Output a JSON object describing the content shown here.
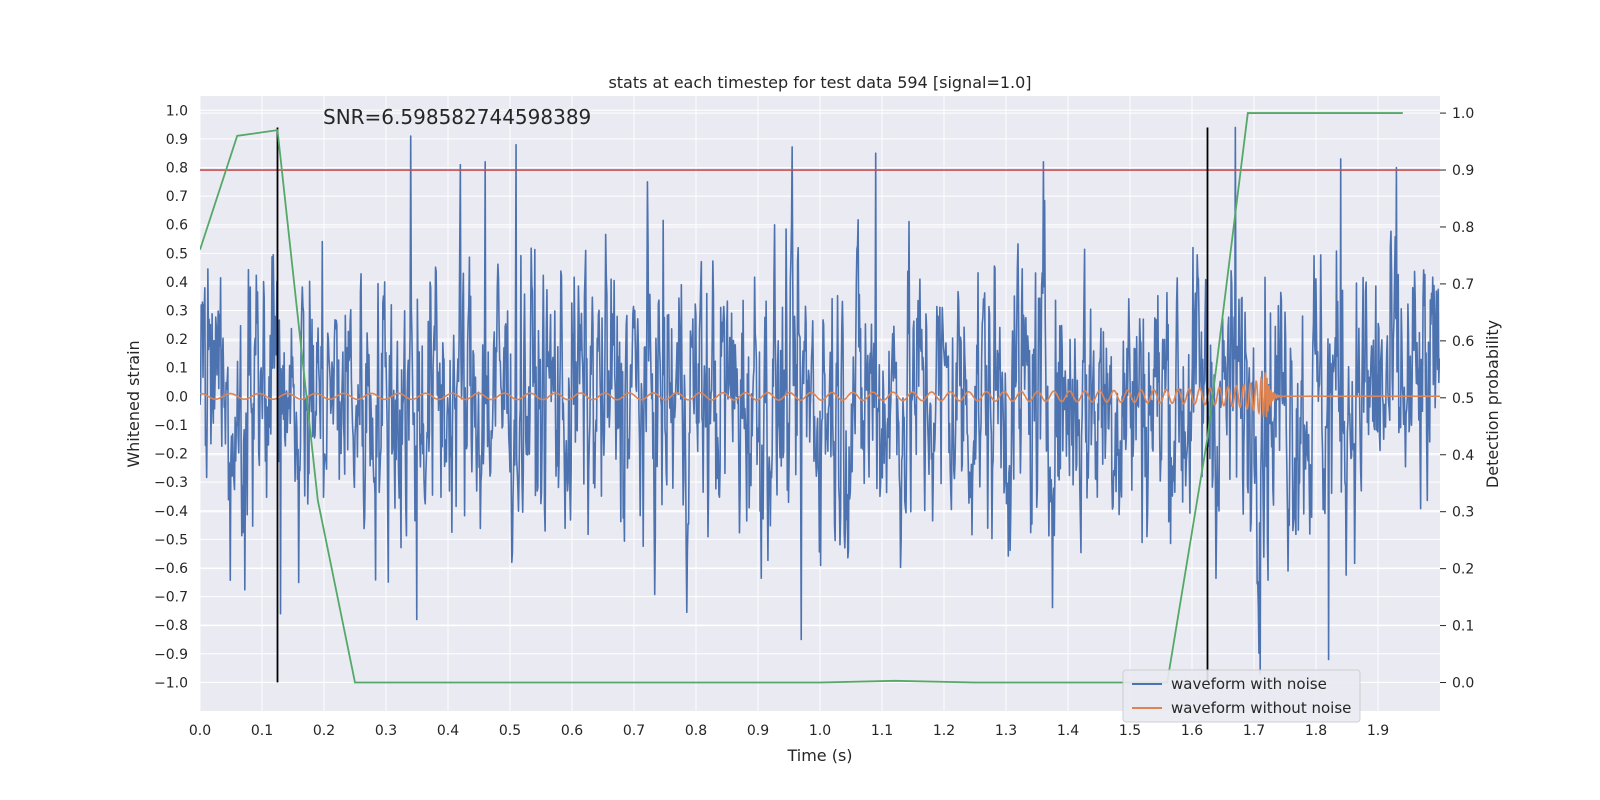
{
  "chart_data": {
    "type": "line",
    "title": "stats at each timestep for test data 594 [signal=1.0]",
    "annotation": "SNR=6.598582744598389",
    "xlabel": "Time (s)",
    "ylabel_left": "Whitened strain",
    "ylabel_right": "Detection probability",
    "xlim": [
      0.0,
      2.0
    ],
    "ylim_left": [
      -1.1,
      1.05
    ],
    "ylim_right": [
      -0.05,
      1.03
    ],
    "x_ticks": [
      "0.0",
      "0.1",
      "0.2",
      "0.3",
      "0.4",
      "0.5",
      "0.6",
      "0.7",
      "0.8",
      "0.9",
      "1.0",
      "1.1",
      "1.2",
      "1.3",
      "1.4",
      "1.5",
      "1.6",
      "1.7",
      "1.8",
      "1.9"
    ],
    "y_ticks_left": [
      "1.0",
      "0.9",
      "0.8",
      "0.7",
      "0.6",
      "0.5",
      "0.4",
      "0.3",
      "0.2",
      "0.1",
      "0.0",
      "−0.1",
      "−0.2",
      "−0.3",
      "−0.4",
      "−0.5",
      "−0.6",
      "−0.7",
      "−0.8",
      "−0.9",
      "−1.0"
    ],
    "y_ticks_right": [
      "1.0",
      "0.9",
      "0.8",
      "0.7",
      "0.6",
      "0.5",
      "0.4",
      "0.3",
      "0.2",
      "0.1",
      "0.0"
    ],
    "grid": true,
    "legend_position": "lower right",
    "threshold": {
      "axis": "right",
      "value": 0.9,
      "color": "#c44e52"
    },
    "vertical_markers": [
      {
        "x": 0.125,
        "y_range": [
          -1.0,
          0.94
        ],
        "color": "#000000"
      },
      {
        "x": 1.625,
        "y_range": [
          -1.0,
          0.94
        ],
        "color": "#000000"
      }
    ],
    "series": [
      {
        "name": "waveform with noise",
        "axis": "left",
        "color": "#4c72b0",
        "kind": "noise",
        "approx_amplitude": 0.3,
        "notable_peaks": [
          {
            "x": 0.34,
            "y": 0.91
          },
          {
            "x": 0.42,
            "y": 0.81
          },
          {
            "x": 0.46,
            "y": 0.82
          },
          {
            "x": 0.51,
            "y": 0.88
          },
          {
            "x": 1.09,
            "y": 0.85
          },
          {
            "x": 1.36,
            "y": 0.82
          },
          {
            "x": 1.67,
            "y": 0.94
          },
          {
            "x": 1.84,
            "y": 0.83
          },
          {
            "x": 1.93,
            "y": 0.8
          },
          {
            "x": 0.97,
            "y": -0.85
          },
          {
            "x": 1.71,
            "y": -0.97
          },
          {
            "x": 1.82,
            "y": -0.92
          },
          {
            "x": 0.13,
            "y": -0.76
          },
          {
            "x": 0.35,
            "y": -0.78
          }
        ]
      },
      {
        "name": "waveform without noise",
        "axis": "left",
        "color": "#dd8452",
        "kind": "chirp",
        "merger_time": 1.72,
        "ringdown_level": 0.0
      },
      {
        "name": "Detection probability",
        "axis": "right",
        "color": "#55a868",
        "x": [
          0.0,
          0.06,
          0.125,
          0.19,
          0.25,
          0.31,
          0.5,
          0.75,
          1.0,
          1.12,
          1.25,
          1.5,
          1.56,
          1.625,
          1.69,
          1.75,
          1.94
        ],
        "y": [
          0.76,
          0.96,
          0.97,
          0.32,
          0.0,
          0.0,
          0.0,
          0.0,
          0.0,
          0.003,
          0.0,
          0.0,
          0.0,
          0.43,
          1.0,
          1.0,
          1.0
        ]
      }
    ],
    "legend": [
      "waveform with noise",
      "waveform without noise"
    ],
    "colors": {
      "background": "#eaeaf2",
      "grid": "#ffffff"
    }
  }
}
